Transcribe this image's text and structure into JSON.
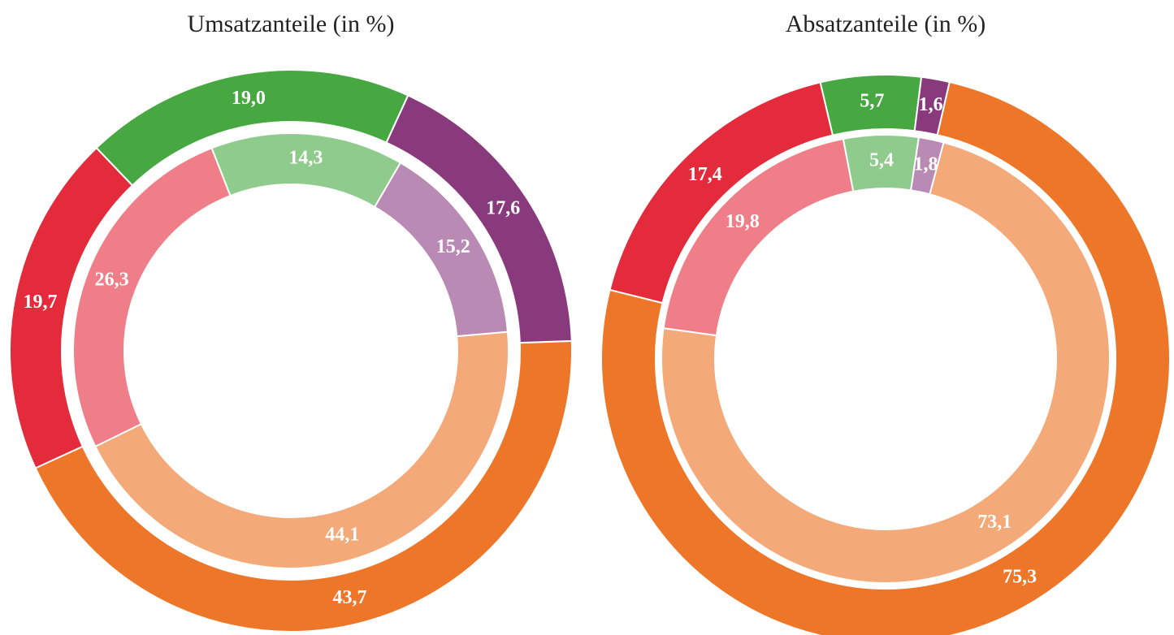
{
  "chart_data": [
    {
      "type": "donut",
      "title": "Umsatzanteile (in %)",
      "series": [
        {
          "values": [
            43.7,
            19.7,
            19.0,
            17.6
          ],
          "value_labels": [
            "43,7",
            "19,7",
            "19,0",
            "17,6"
          ],
          "colors": [
            "#ee7629",
            "#e32b3b",
            "#47a842",
            "#883a7d"
          ]
        },
        {
          "values": [
            44.1,
            26.3,
            14.3,
            15.2
          ],
          "value_labels": [
            "44,1",
            "26,3",
            "14,3",
            "15,2"
          ],
          "colors": [
            "#f3a978",
            "#f07e88",
            "#8fcb8c",
            "#b98ab4"
          ]
        }
      ]
    },
    {
      "type": "donut",
      "title": "Absatzanteile (in %)",
      "series": [
        {
          "values": [
            75.3,
            17.4,
            5.7,
            1.6
          ],
          "value_labels": [
            "75,3",
            "17,4",
            "5,7",
            "1,6"
          ],
          "colors": [
            "#ee7629",
            "#e32b3b",
            "#47a842",
            "#883a7d"
          ]
        },
        {
          "values": [
            73.1,
            19.8,
            5.4,
            1.8
          ],
          "value_labels": [
            "73,1",
            "19,8",
            "5,4",
            "1,8"
          ],
          "colors": [
            "#f3a978",
            "#f07e88",
            "#8fcb8c",
            "#b98ab4"
          ]
        }
      ]
    }
  ]
}
